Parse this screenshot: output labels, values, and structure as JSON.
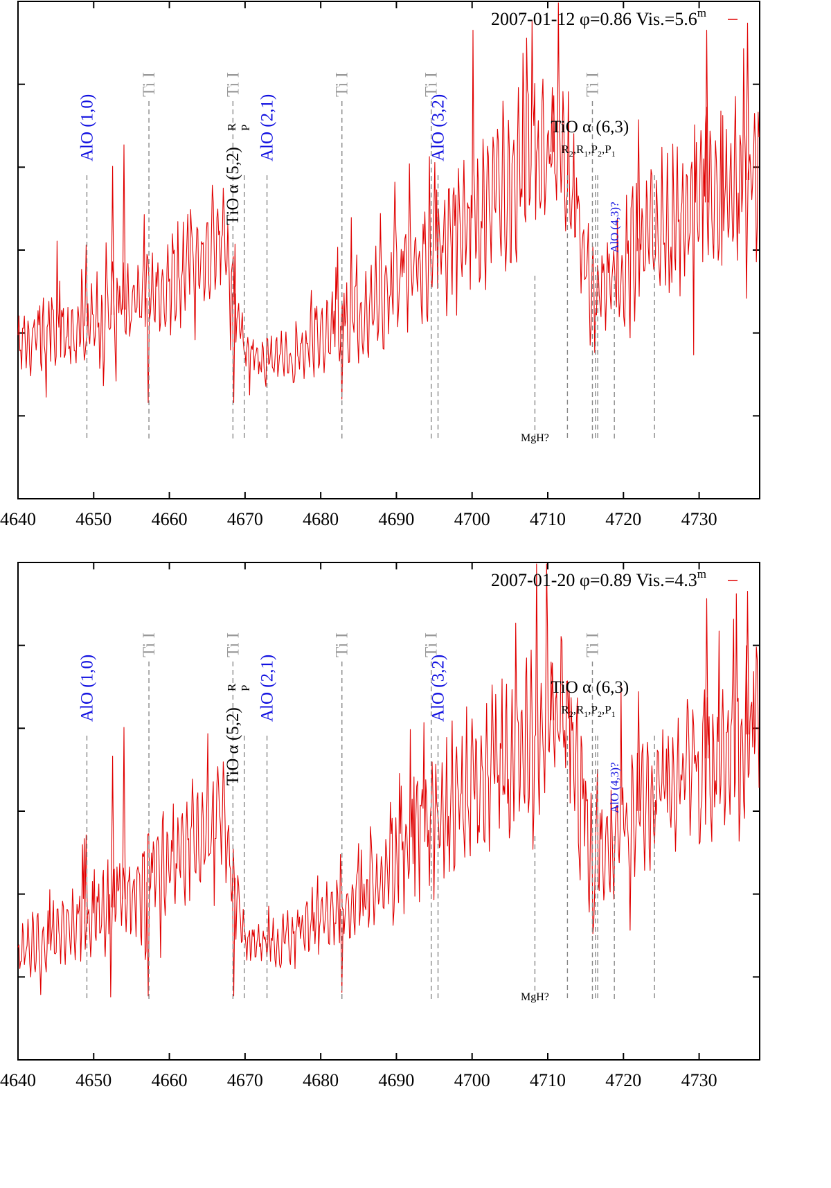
{
  "chart_data": [
    {
      "type": "line",
      "legend": {
        "text": "2007-01-12 φ=0.86 Vis.=5.6",
        "superscript": "m",
        "placement": "top-right"
      },
      "xlim": [
        4640,
        4738
      ],
      "xticks": [
        4640,
        4650,
        4660,
        4670,
        4680,
        4690,
        4700,
        4710,
        4720,
        4730
      ],
      "series_color": "#e00000",
      "spectrum_profile": {
        "x": [
          4640,
          4650,
          4658,
          4667,
          4670,
          4675,
          4685,
          4695,
          4705,
          4712,
          4716,
          4725,
          4738
        ],
        "y": [
          0.22,
          0.28,
          0.36,
          0.53,
          0.2,
          0.18,
          0.3,
          0.48,
          0.68,
          0.78,
          0.35,
          0.55,
          0.7
        ],
        "amplitude": [
          0.1,
          0.14,
          0.16,
          0.18,
          0.06,
          0.08,
          0.14,
          0.22,
          0.26,
          0.24,
          0.18,
          0.22,
          0.26
        ]
      },
      "spikes": [
        {
          "x": 4654,
          "y": 0.78
        },
        {
          "x": 4652.5,
          "y": 0.72
        },
        {
          "x": 4649,
          "y": 0.5
        },
        {
          "x": 4657.2,
          "y": 0.06
        },
        {
          "x": 4668.5,
          "y": 0.06
        },
        {
          "x": 4682.8,
          "y": 0.07
        },
        {
          "x": 4710.6,
          "y": 0.94
        },
        {
          "x": 4722,
          "y": 0.85
        },
        {
          "x": 4731,
          "y": 1.1
        },
        {
          "x": 4736.4,
          "y": 1.12
        }
      ],
      "line_ids": [
        {
          "x": 4649.1,
          "label": "AlO (1,0)",
          "kind": "alo"
        },
        {
          "x": 4657.3,
          "label": "Ti I",
          "kind": "ti"
        },
        {
          "x": 4668.4,
          "label": "Ti I",
          "kind": "ti"
        },
        {
          "x": 4669.9,
          "label": "",
          "kind": "plain"
        },
        {
          "x": 4672.9,
          "label": "AlO (2,1)",
          "kind": "alo"
        },
        {
          "x": 4682.8,
          "label": "Ti I",
          "kind": "ti"
        },
        {
          "x": 4694.6,
          "label": "Ti I",
          "kind": "ti"
        },
        {
          "x": 4695.5,
          "label": "AlO (3,2)",
          "kind": "alo"
        },
        {
          "x": 4708.3,
          "label": "MgH?",
          "kind": "small"
        },
        {
          "x": 4712.6,
          "label": "",
          "kind": "plain"
        },
        {
          "x": 4715.9,
          "label": "Ti I",
          "kind": "ti"
        },
        {
          "x": 4716.3,
          "label": "",
          "kind": "plain"
        },
        {
          "x": 4716.6,
          "label": "",
          "kind": "plain"
        },
        {
          "x": 4718.8,
          "label": "AlO (4,3)?",
          "kind": "alo-small"
        },
        {
          "x": 4724.1,
          "label": "",
          "kind": "plain"
        }
      ],
      "band_labels": [
        {
          "text": "TiO α (5,2)",
          "sup": "R",
          "sub": "P"
        },
        {
          "text": "TiO α (6,3)",
          "sub_labels": [
            "R",
            "2",
            ",R",
            "1",
            ",P",
            "2",
            ",P",
            "1"
          ]
        }
      ]
    },
    {
      "type": "line",
      "legend": {
        "text": "2007-01-20 φ=0.89 Vis.=4.3",
        "superscript": "m",
        "placement": "top-right"
      },
      "xlim": [
        4640,
        4738
      ],
      "xticks": [
        4640,
        4650,
        4660,
        4670,
        4680,
        4690,
        4700,
        4710,
        4720,
        4730
      ],
      "series_color": "#e00000",
      "spectrum_profile": {
        "x": [
          4640,
          4650,
          4658,
          4667,
          4670,
          4675,
          4685,
          4695,
          4705,
          4712,
          4716,
          4725,
          4738
        ],
        "y": [
          0.1,
          0.18,
          0.3,
          0.48,
          0.12,
          0.12,
          0.24,
          0.46,
          0.66,
          0.76,
          0.34,
          0.56,
          0.72
        ],
        "amplitude": [
          0.08,
          0.14,
          0.16,
          0.18,
          0.06,
          0.08,
          0.14,
          0.22,
          0.26,
          0.24,
          0.18,
          0.22,
          0.26
        ]
      },
      "spikes": [
        {
          "x": 4654,
          "y": 0.72
        },
        {
          "x": 4652.5,
          "y": 0.64
        },
        {
          "x": 4649,
          "y": 0.42
        },
        {
          "x": 4657.2,
          "y": -0.03
        },
        {
          "x": 4668.5,
          "y": -0.03
        },
        {
          "x": 4682.8,
          "y": -0.02
        },
        {
          "x": 4710.6,
          "y": 0.9
        },
        {
          "x": 4722,
          "y": 0.82
        },
        {
          "x": 4731,
          "y": 1.08
        },
        {
          "x": 4736.4,
          "y": 1.1
        }
      ],
      "line_ids": [
        {
          "x": 4649.1,
          "label": "AlO (1,0)",
          "kind": "alo"
        },
        {
          "x": 4657.3,
          "label": "Ti I",
          "kind": "ti"
        },
        {
          "x": 4668.4,
          "label": "Ti I",
          "kind": "ti"
        },
        {
          "x": 4669.9,
          "label": "",
          "kind": "plain"
        },
        {
          "x": 4672.9,
          "label": "AlO (2,1)",
          "kind": "alo"
        },
        {
          "x": 4682.8,
          "label": "Ti I",
          "kind": "ti"
        },
        {
          "x": 4694.6,
          "label": "Ti I",
          "kind": "ti"
        },
        {
          "x": 4695.5,
          "label": "AlO (3,2)",
          "kind": "alo"
        },
        {
          "x": 4708.3,
          "label": "MgH?",
          "kind": "small"
        },
        {
          "x": 4712.6,
          "label": "",
          "kind": "plain"
        },
        {
          "x": 4715.9,
          "label": "Ti I",
          "kind": "ti"
        },
        {
          "x": 4716.3,
          "label": "",
          "kind": "plain"
        },
        {
          "x": 4716.6,
          "label": "",
          "kind": "plain"
        },
        {
          "x": 4718.8,
          "label": "AlO (4,3)?",
          "kind": "alo-small"
        },
        {
          "x": 4724.1,
          "label": "",
          "kind": "plain"
        }
      ],
      "band_labels": [
        {
          "text": "TiO α (5,2)",
          "sup": "R",
          "sub": "P"
        },
        {
          "text": "TiO α (6,3)",
          "sub_labels": [
            "R",
            "2",
            ",R",
            "1",
            ",P",
            "2",
            ",P",
            "1"
          ]
        }
      ]
    }
  ]
}
